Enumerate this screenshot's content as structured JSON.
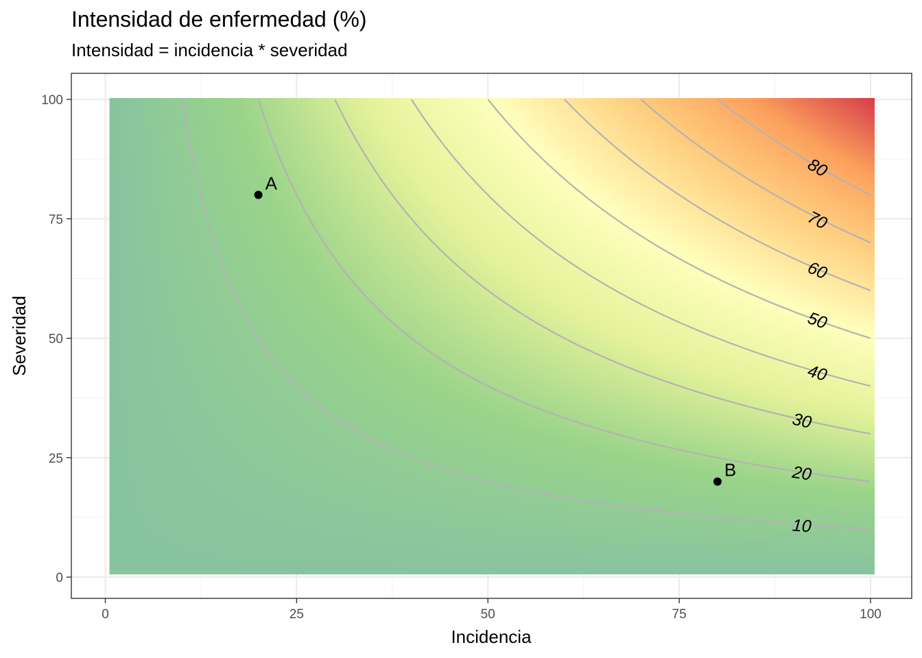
{
  "chart_data": {
    "type": "heatmap",
    "title": "Intensidad de enfermedad (%)",
    "subtitle": "Intensidad = incidencia * severidad",
    "xlabel": "Incidencia",
    "ylabel": "Severidad",
    "xlim": [
      0,
      100
    ],
    "ylim": [
      0,
      100
    ],
    "x_ticks": [
      0,
      25,
      50,
      75,
      100
    ],
    "y_ticks": [
      0,
      25,
      50,
      75,
      100
    ],
    "grid": true,
    "fill_range": [
      0,
      100
    ],
    "colorscale": [
      "#88c3a0",
      "#9ad48a",
      "#e5f29a",
      "#ffffbd",
      "#ffd283",
      "#fca15d",
      "#d63c4a"
    ],
    "contour_levels": [
      10,
      20,
      30,
      40,
      50,
      60,
      70,
      80
    ],
    "contour_color": "#b3b3b3",
    "contour_labels": [
      {
        "text": "10",
        "x": 91,
        "y": 10.5
      },
      {
        "text": "20",
        "x": 91,
        "y": 21.5
      },
      {
        "text": "30",
        "x": 91,
        "y": 32.5
      },
      {
        "text": "40",
        "x": 93,
        "y": 42.5
      },
      {
        "text": "50",
        "x": 93,
        "y": 53.5
      },
      {
        "text": "60",
        "x": 93,
        "y": 64
      },
      {
        "text": "70",
        "x": 93,
        "y": 74.5
      },
      {
        "text": "80",
        "x": 93,
        "y": 85.5
      }
    ],
    "points": [
      {
        "label": "A",
        "x": 20,
        "y": 80
      },
      {
        "label": "B",
        "x": 80,
        "y": 20
      }
    ]
  }
}
